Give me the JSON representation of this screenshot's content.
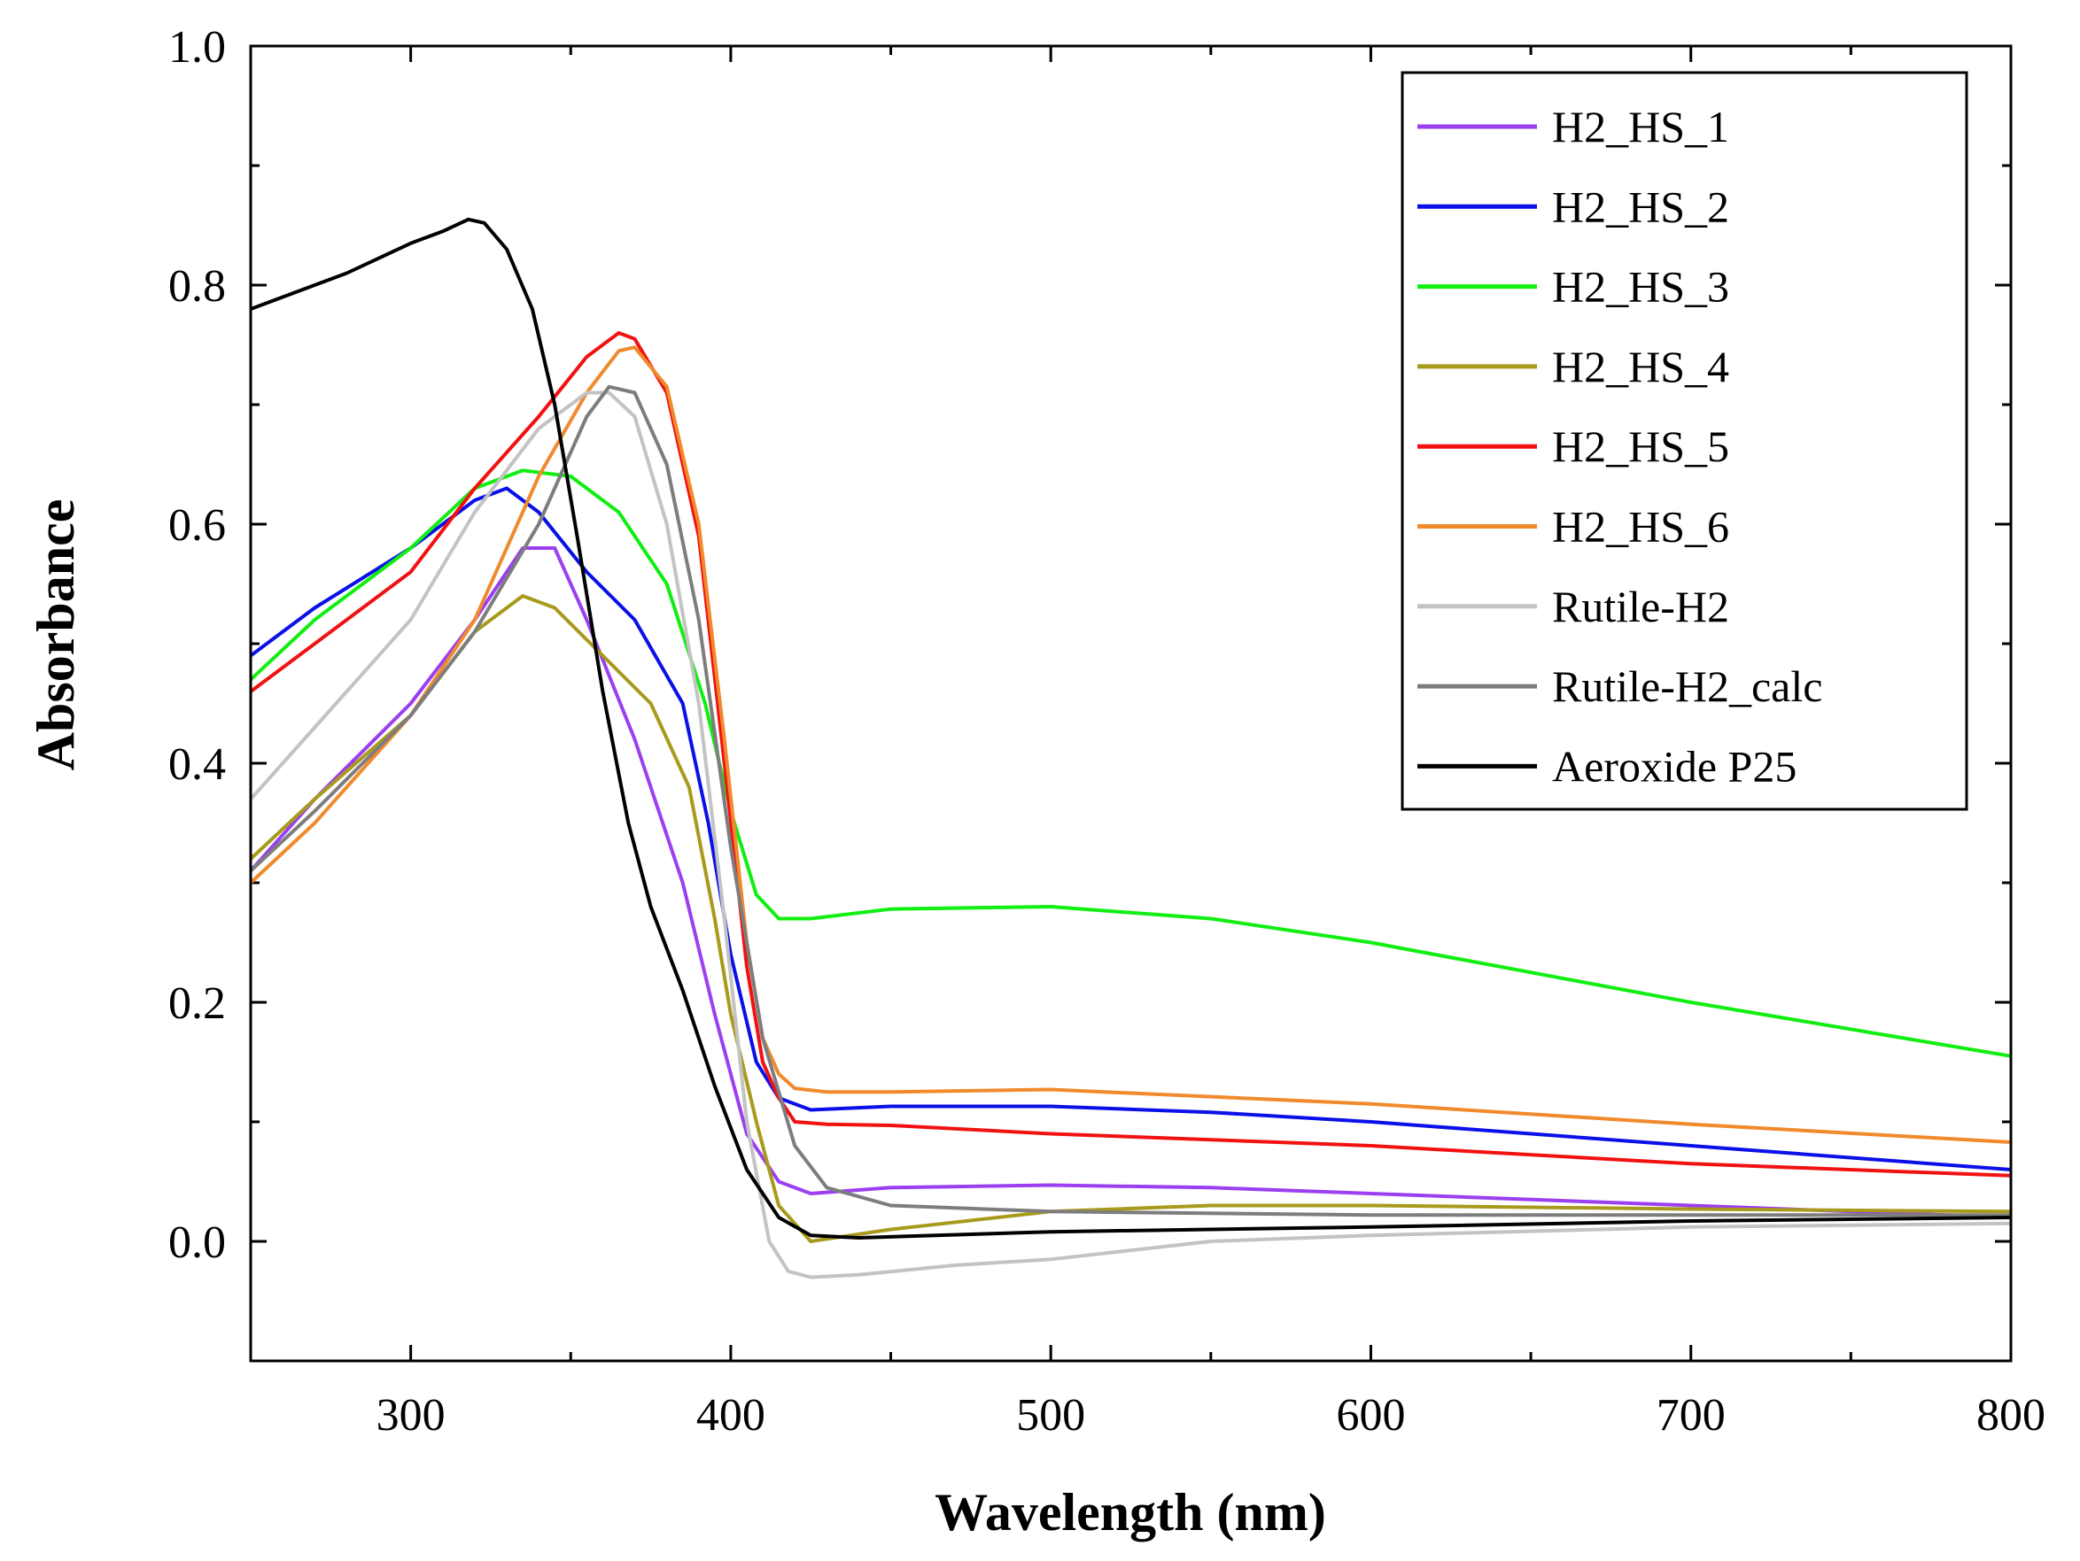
{
  "chart_data": {
    "type": "line",
    "title": "",
    "xlabel": "Wavelength (nm)",
    "ylabel": "Absorbance",
    "xlim": [
      250,
      800
    ],
    "ylim": [
      -0.1,
      1.0
    ],
    "xticks": [
      300,
      400,
      500,
      600,
      700,
      800
    ],
    "xtick_labels": [
      "300",
      "400",
      "500",
      "600",
      "700",
      "800"
    ],
    "xminor": [
      250,
      350,
      450,
      550,
      650,
      750
    ],
    "yticks": [
      0.0,
      0.2,
      0.4,
      0.6,
      0.8,
      1.0
    ],
    "ytick_labels": [
      "0.0",
      "0.2",
      "0.4",
      "0.6",
      "0.8",
      "1.0"
    ],
    "yminor": [
      -0.1,
      0.1,
      0.3,
      0.5,
      0.7,
      0.9
    ],
    "grid": false,
    "legend_position": "top-right",
    "series": [
      {
        "name": "H2_HS_1",
        "color": "#9B3FF0",
        "x": [
          250,
          270,
          300,
          320,
          335,
          345,
          355,
          370,
          385,
          395,
          405,
          415,
          425,
          450,
          500,
          550,
          600,
          700,
          800
        ],
        "y": [
          0.31,
          0.37,
          0.45,
          0.52,
          0.58,
          0.58,
          0.52,
          0.42,
          0.3,
          0.19,
          0.09,
          0.05,
          0.04,
          0.045,
          0.047,
          0.045,
          0.04,
          0.03,
          0.02
        ]
      },
      {
        "name": "H2_HS_2",
        "color": "#0A10E8",
        "x": [
          250,
          270,
          300,
          320,
          330,
          340,
          355,
          370,
          385,
          393,
          400,
          408,
          415,
          425,
          450,
          500,
          550,
          600,
          700,
          800
        ],
        "y": [
          0.49,
          0.53,
          0.58,
          0.62,
          0.63,
          0.61,
          0.56,
          0.52,
          0.45,
          0.35,
          0.24,
          0.15,
          0.12,
          0.11,
          0.113,
          0.113,
          0.108,
          0.1,
          0.08,
          0.06
        ]
      },
      {
        "name": "H2_HS_3",
        "color": "#11EE11",
        "x": [
          250,
          270,
          300,
          320,
          335,
          350,
          365,
          380,
          392,
          400,
          408,
          415,
          425,
          450,
          500,
          550,
          600,
          700,
          800
        ],
        "y": [
          0.47,
          0.52,
          0.58,
          0.63,
          0.645,
          0.64,
          0.61,
          0.55,
          0.45,
          0.36,
          0.29,
          0.27,
          0.27,
          0.278,
          0.28,
          0.27,
          0.25,
          0.2,
          0.155
        ]
      },
      {
        "name": "H2_HS_4",
        "color": "#A89A1C",
        "x": [
          250,
          270,
          300,
          320,
          335,
          345,
          360,
          375,
          387,
          395,
          400,
          408,
          415,
          425,
          450,
          500,
          550,
          600,
          700,
          800
        ],
        "y": [
          0.32,
          0.37,
          0.44,
          0.51,
          0.54,
          0.53,
          0.49,
          0.45,
          0.38,
          0.27,
          0.19,
          0.1,
          0.03,
          0.0,
          0.01,
          0.025,
          0.03,
          0.03,
          0.027,
          0.025
        ]
      },
      {
        "name": "H2_HS_5",
        "color": "#F21111",
        "x": [
          250,
          270,
          300,
          320,
          340,
          355,
          365,
          370,
          380,
          390,
          398,
          405,
          410,
          415,
          420,
          430,
          450,
          500,
          600,
          700,
          800
        ],
        "y": [
          0.46,
          0.5,
          0.56,
          0.63,
          0.69,
          0.74,
          0.76,
          0.755,
          0.71,
          0.59,
          0.4,
          0.23,
          0.15,
          0.12,
          0.1,
          0.098,
          0.097,
          0.09,
          0.08,
          0.065,
          0.055
        ]
      },
      {
        "name": "H2_HS_6",
        "color": "#F08A2C",
        "x": [
          250,
          270,
          300,
          320,
          340,
          355,
          365,
          370,
          380,
          390,
          398,
          405,
          410,
          415,
          420,
          430,
          450,
          500,
          600,
          700,
          800
        ],
        "y": [
          0.3,
          0.35,
          0.44,
          0.52,
          0.64,
          0.71,
          0.745,
          0.748,
          0.715,
          0.6,
          0.42,
          0.25,
          0.17,
          0.14,
          0.128,
          0.125,
          0.125,
          0.127,
          0.115,
          0.098,
          0.083
        ]
      },
      {
        "name": "Rutile-H2",
        "color": "#C3C3C3",
        "x": [
          250,
          270,
          300,
          320,
          340,
          355,
          362,
          370,
          380,
          390,
          398,
          405,
          412,
          418,
          425,
          440,
          470,
          500,
          550,
          600,
          700,
          800
        ],
        "y": [
          0.37,
          0.43,
          0.52,
          0.61,
          0.68,
          0.71,
          0.71,
          0.69,
          0.6,
          0.45,
          0.27,
          0.1,
          0.0,
          -0.025,
          -0.03,
          -0.028,
          -0.02,
          -0.015,
          0.0,
          0.005,
          0.012,
          0.015
        ]
      },
      {
        "name": "Rutile-H2_calc",
        "color": "#7D7D7D",
        "x": [
          250,
          270,
          300,
          320,
          340,
          355,
          362,
          370,
          380,
          390,
          400,
          410,
          420,
          430,
          450,
          500,
          600,
          700,
          800
        ],
        "y": [
          0.31,
          0.36,
          0.44,
          0.51,
          0.6,
          0.69,
          0.715,
          0.71,
          0.65,
          0.52,
          0.33,
          0.17,
          0.08,
          0.045,
          0.03,
          0.025,
          0.022,
          0.022,
          0.022
        ]
      },
      {
        "name": "Aeroxide P25",
        "color": "#000000",
        "x": [
          250,
          260,
          280,
          300,
          310,
          318,
          323,
          330,
          338,
          345,
          352,
          360,
          368,
          375,
          385,
          395,
          405,
          415,
          425,
          440,
          500,
          600,
          700,
          800
        ],
        "y": [
          0.78,
          0.79,
          0.81,
          0.835,
          0.845,
          0.855,
          0.852,
          0.83,
          0.78,
          0.7,
          0.59,
          0.46,
          0.35,
          0.28,
          0.21,
          0.13,
          0.06,
          0.02,
          0.005,
          0.003,
          0.008,
          0.012,
          0.017,
          0.02
        ]
      }
    ]
  }
}
